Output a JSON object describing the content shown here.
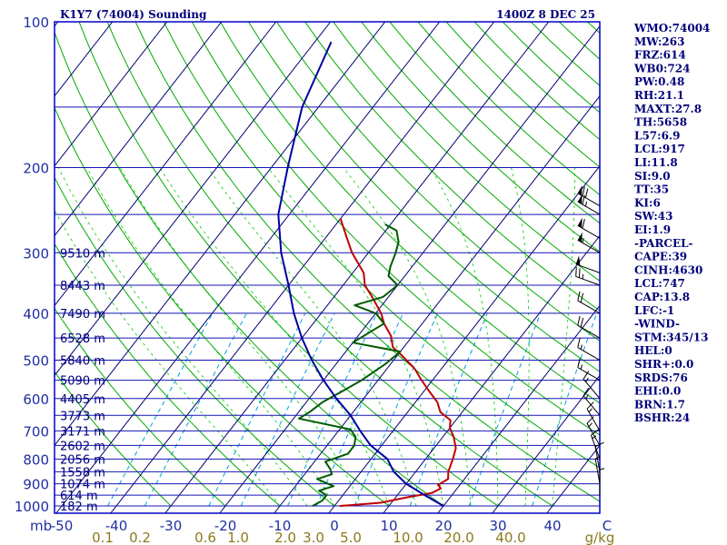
{
  "chart_data": {
    "type": "line",
    "title": "K1Y7 (74004) Sounding",
    "time_label": "1400Z  8 DEC 25",
    "pressure_axis_mb": [
      100,
      200,
      300,
      400,
      500,
      600,
      700,
      800,
      900,
      1000
    ],
    "pressure_unit": "mb",
    "temperature_ticks": [
      "-50",
      "-40",
      "-30",
      "-20",
      "-10",
      "0",
      "10",
      "20",
      "30",
      "40",
      "C"
    ],
    "mixing_ratio_ticks": [
      "0.1",
      "0.2",
      "0.6",
      "1.0",
      "2.0",
      "3.0",
      "5.0",
      "10.0",
      "20.0",
      "40.0",
      "g/kg"
    ],
    "height_labels": [
      {
        "p": 300,
        "label": "9510 m"
      },
      {
        "p": 350,
        "label": "8443 m"
      },
      {
        "p": 400,
        "label": "7490 m"
      },
      {
        "p": 450,
        "label": "6528 m"
      },
      {
        "p": 500,
        "label": "5840 m"
      },
      {
        "p": 550,
        "label": "5090 m"
      },
      {
        "p": 600,
        "label": "4405 m"
      },
      {
        "p": 650,
        "label": "3773 m"
      },
      {
        "p": 700,
        "label": "3171 m"
      },
      {
        "p": 750,
        "label": "2602 m"
      },
      {
        "p": 800,
        "label": "2056 m"
      },
      {
        "p": 850,
        "label": "1558 m"
      },
      {
        "p": 900,
        "label": "1074 m"
      },
      {
        "p": 950,
        "label": "614 m"
      },
      {
        "p": 1000,
        "label": "182 m"
      }
    ],
    "series": [
      {
        "name": "",
        "color": "#c00000",
        "points": [
          [
            1000,
            1
          ],
          [
            985,
            8
          ],
          [
            960,
            12
          ],
          [
            940,
            16
          ],
          [
            920,
            17
          ],
          [
            905,
            16
          ],
          [
            880,
            17
          ],
          [
            850,
            16
          ],
          [
            800,
            15
          ],
          [
            760,
            14
          ],
          [
            720,
            12
          ],
          [
            690,
            10
          ],
          [
            665,
            9
          ],
          [
            640,
            6
          ],
          [
            610,
            4
          ],
          [
            580,
            1
          ],
          [
            550,
            -2
          ],
          [
            520,
            -5
          ],
          [
            490,
            -9
          ],
          [
            470,
            -12
          ],
          [
            445,
            -14
          ],
          [
            420,
            -17
          ],
          [
            400,
            -19
          ],
          [
            370,
            -23
          ],
          [
            350,
            -26
          ],
          [
            330,
            -28
          ],
          [
            300,
            -33
          ],
          [
            280,
            -36
          ],
          [
            255,
            -40
          ]
        ]
      },
      {
        "name": "",
        "color": "#005a00",
        "points": [
          [
            1000,
            -4
          ],
          [
            975,
            -3
          ],
          [
            950,
            -3
          ],
          [
            930,
            -5
          ],
          [
            910,
            -3
          ],
          [
            880,
            -7
          ],
          [
            860,
            -5
          ],
          [
            840,
            -6
          ],
          [
            810,
            -8
          ],
          [
            780,
            -5
          ],
          [
            750,
            -5
          ],
          [
            720,
            -6
          ],
          [
            695,
            -8
          ],
          [
            660,
            -19
          ],
          [
            640,
            -18
          ],
          [
            610,
            -17
          ],
          [
            580,
            -15
          ],
          [
            550,
            -13
          ],
          [
            510,
            -11
          ],
          [
            480,
            -10
          ],
          [
            460,
            -20
          ],
          [
            420,
            -17
          ],
          [
            400,
            -20
          ],
          [
            385,
            -25
          ],
          [
            370,
            -21
          ],
          [
            350,
            -20
          ],
          [
            335,
            -23
          ],
          [
            320,
            -24
          ],
          [
            300,
            -25
          ],
          [
            285,
            -26
          ],
          [
            270,
            -28
          ],
          [
            262,
            -31
          ]
        ]
      },
      {
        "name": "",
        "color": "#0000a0",
        "points": [
          [
            1000,
            20
          ],
          [
            950,
            15
          ],
          [
            900,
            10
          ],
          [
            850,
            6
          ],
          [
            800,
            3
          ],
          [
            750,
            -2
          ],
          [
            700,
            -6
          ],
          [
            650,
            -10
          ],
          [
            600,
            -15
          ],
          [
            550,
            -20
          ],
          [
            500,
            -25
          ],
          [
            450,
            -30
          ],
          [
            400,
            -35
          ],
          [
            350,
            -40
          ],
          [
            300,
            -46
          ],
          [
            250,
            -52
          ],
          [
            200,
            -57
          ],
          [
            150,
            -63
          ],
          [
            110,
            -67
          ]
        ]
      }
    ],
    "wind_barbs": [
      {
        "p": 240,
        "dir": 300,
        "kt": 70
      },
      {
        "p": 250,
        "dir": 300,
        "kt": 65
      },
      {
        "p": 280,
        "dir": 300,
        "kt": 60
      },
      {
        "p": 300,
        "dir": 300,
        "kt": 55
      },
      {
        "p": 330,
        "dir": 290,
        "kt": 50
      },
      {
        "p": 350,
        "dir": 290,
        "kt": 25
      },
      {
        "p": 400,
        "dir": 300,
        "kt": 20
      },
      {
        "p": 450,
        "dir": 300,
        "kt": 20
      },
      {
        "p": 500,
        "dir": 300,
        "kt": 15
      },
      {
        "p": 550,
        "dir": 300,
        "kt": 15
      },
      {
        "p": 600,
        "dir": 320,
        "kt": 15
      },
      {
        "p": 650,
        "dir": 320,
        "kt": 15
      },
      {
        "p": 700,
        "dir": 330,
        "kt": 15
      },
      {
        "p": 750,
        "dir": 330,
        "kt": 15
      },
      {
        "p": 800,
        "dir": 340,
        "kt": 15
      },
      {
        "p": 850,
        "dir": 350,
        "kt": 10
      },
      {
        "p": 900,
        "dir": 350,
        "kt": 5
      },
      {
        "p": 950,
        "dir": 0,
        "kt": 5
      }
    ],
    "indices": [
      "WMO:74004",
      "MW:263",
      "FRZ:614",
      "WB0:724",
      "PW:0.48",
      "RH:21.1",
      "MAXT:27.8",
      "TH:5658",
      "L57:6.9",
      "LCL:917",
      "LI:11.8",
      "SI:9.0",
      "TT:35",
      "KI:6",
      "SW:43",
      "EI:1.9",
      "-PARCEL-",
      "CAPE:39",
      "CINH:4630",
      "LCL:747",
      "CAP:13.8",
      "LFC:-1",
      "-WIND-",
      "STM:345/13",
      "HEL:0",
      "SHR+:0.0",
      "SRDS:76",
      "EHI:0.0",
      "BRN:1.7",
      "BSHR:24"
    ],
    "colors": {
      "frame": "#0000c8",
      "isobar": "#1414b4",
      "isotherm": "#000070",
      "dry_adiabat": "#00aa00",
      "moist_adiabat": "#00cc00",
      "mixing_ratio": "#00a0e0",
      "wind": "#000000"
    }
  }
}
